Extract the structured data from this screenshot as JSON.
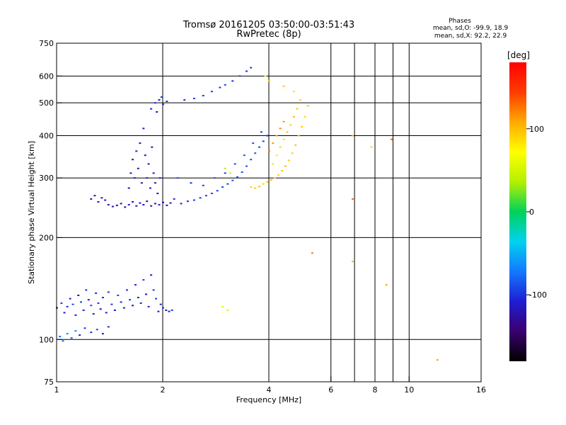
{
  "header": {
    "title": "Tromsø 20161205 03:50:00-03:51:43",
    "subtitle": "RwPretec (8p)",
    "stats_title": "Phases",
    "stats_o": "mean, sd,O:  -99.9,  18.9",
    "stats_x": "mean, sd,X:   92.2,  22.9"
  },
  "colorbar": {
    "unit_label": "[deg]",
    "ticks": [
      {
        "value": 100,
        "label": "100"
      },
      {
        "value": 0,
        "label": "0"
      },
      {
        "value": -100,
        "label": "-100"
      }
    ],
    "range": [
      -180,
      180
    ],
    "stops": [
      "#000000",
      "#3a006e",
      "#1e1ed2",
      "#1478ff",
      "#00d2f0",
      "#00d25a",
      "#b4f000",
      "#ffff00",
      "#ffaa00",
      "#ff3c00",
      "#ff0000"
    ]
  },
  "chart_data": {
    "type": "scatter",
    "title": "Tromsø 20161205 03:50:00-03:51:43",
    "subtitle": "RwPretec (8p)",
    "xlabel": "Frequency [MHz]",
    "ylabel": "Stationary phase Virtual Height [km]",
    "x_scale": "log",
    "y_scale": "log",
    "xlim": [
      1,
      16
    ],
    "ylim": [
      75,
      750
    ],
    "grid": true,
    "x_ticks": [
      {
        "v": 1,
        "l": "1"
      },
      {
        "v": 2,
        "l": "2"
      },
      {
        "v": 4,
        "l": "4"
      },
      {
        "v": 6,
        "l": "6"
      },
      {
        "v": 8,
        "l": "8"
      },
      {
        "v": 10,
        "l": "10"
      },
      {
        "v": 16,
        "l": "16"
      }
    ],
    "x_grid": [
      2,
      4,
      6,
      7,
      8,
      9,
      10
    ],
    "y_ticks": [
      {
        "v": 75,
        "l": "75"
      },
      {
        "v": 100,
        "l": "100"
      },
      {
        "v": 200,
        "l": "200"
      },
      {
        "v": 300,
        "l": "300"
      },
      {
        "v": 400,
        "l": "400"
      },
      {
        "v": 500,
        "l": "500"
      },
      {
        "v": 600,
        "l": "600"
      },
      {
        "v": 750,
        "l": "750"
      }
    ],
    "y_grid": [
      100,
      200,
      300,
      400,
      500,
      600
    ],
    "series": [
      {
        "mode": "O",
        "phase_mean": -99.9,
        "points": [
          [
            1.0,
            124,
            -110
          ],
          [
            1.03,
            128,
            -95
          ],
          [
            1.05,
            120,
            -115
          ],
          [
            1.07,
            125,
            -100
          ],
          [
            1.09,
            132,
            -105
          ],
          [
            1.11,
            127,
            -90
          ],
          [
            1.13,
            118,
            -110
          ],
          [
            1.15,
            135,
            -120
          ],
          [
            1.17,
            129,
            -95
          ],
          [
            1.19,
            122,
            -105
          ],
          [
            1.21,
            140,
            -100
          ],
          [
            1.23,
            131,
            -115
          ],
          [
            1.25,
            126,
            -90
          ],
          [
            1.27,
            119,
            -110
          ],
          [
            1.29,
            137,
            -100
          ],
          [
            1.31,
            128,
            -95
          ],
          [
            1.33,
            123,
            -120
          ],
          [
            1.35,
            133,
            -105
          ],
          [
            1.38,
            120,
            -110
          ],
          [
            1.4,
            138,
            -100
          ],
          [
            1.43,
            127,
            -95
          ],
          [
            1.46,
            122,
            -115
          ],
          [
            1.49,
            135,
            -90
          ],
          [
            1.52,
            129,
            -105
          ],
          [
            1.55,
            124,
            -110
          ],
          [
            1.58,
            140,
            -100
          ],
          [
            1.61,
            131,
            -95
          ],
          [
            1.64,
            126,
            -120
          ],
          [
            1.67,
            145,
            -105
          ],
          [
            1.7,
            133,
            -110
          ],
          [
            1.73,
            128,
            -100
          ],
          [
            1.76,
            150,
            -95
          ],
          [
            1.79,
            136,
            -115
          ],
          [
            1.82,
            125,
            -105
          ],
          [
            1.85,
            155,
            -110
          ],
          [
            1.88,
            140,
            -100
          ],
          [
            1.91,
            132,
            -95
          ],
          [
            1.94,
            121,
            -110
          ],
          [
            1.97,
            127,
            -105
          ],
          [
            2.0,
            124,
            -100
          ],
          [
            2.04,
            122,
            -115
          ],
          [
            2.08,
            121,
            -110
          ],
          [
            2.12,
            122,
            -95
          ],
          [
            1.02,
            102,
            -80
          ],
          [
            1.04,
            99,
            -75
          ],
          [
            1.07,
            104,
            -60
          ],
          [
            1.1,
            101,
            -85
          ],
          [
            1.13,
            106,
            -70
          ],
          [
            1.16,
            103,
            -110
          ],
          [
            1.2,
            108,
            -95
          ],
          [
            1.25,
            105,
            -100
          ],
          [
            1.3,
            107,
            -90
          ],
          [
            1.35,
            104,
            -105
          ],
          [
            1.4,
            109,
            -100
          ],
          [
            1.25,
            260,
            -120
          ],
          [
            1.28,
            266,
            -125
          ],
          [
            1.31,
            255,
            -115
          ],
          [
            1.34,
            262,
            -120
          ],
          [
            1.37,
            258,
            -110
          ],
          [
            1.4,
            250,
            -125
          ],
          [
            1.44,
            247,
            -120
          ],
          [
            1.48,
            249,
            -115
          ],
          [
            1.52,
            252,
            -125
          ],
          [
            1.56,
            246,
            -120
          ],
          [
            1.6,
            250,
            -110
          ],
          [
            1.64,
            255,
            -125
          ],
          [
            1.68,
            248,
            -120
          ],
          [
            1.72,
            253,
            -115
          ],
          [
            1.76,
            250,
            -120
          ],
          [
            1.8,
            256,
            -125
          ],
          [
            1.85,
            248,
            -115
          ],
          [
            1.9,
            252,
            -120
          ],
          [
            1.95,
            250,
            -110
          ],
          [
            2.0,
            254,
            -120
          ],
          [
            2.05,
            249,
            -125
          ],
          [
            2.1,
            253,
            -115
          ],
          [
            1.6,
            280,
            -120
          ],
          [
            1.62,
            310,
            -115
          ],
          [
            1.64,
            340,
            -125
          ],
          [
            1.66,
            300,
            -120
          ],
          [
            1.68,
            360,
            -110
          ],
          [
            1.7,
            320,
            -120
          ],
          [
            1.72,
            380,
            -115
          ],
          [
            1.74,
            290,
            -125
          ],
          [
            1.76,
            420,
            -110
          ],
          [
            1.78,
            350,
            -120
          ],
          [
            1.8,
            300,
            -115
          ],
          [
            1.82,
            330,
            -120
          ],
          [
            1.84,
            280,
            -110
          ],
          [
            1.86,
            370,
            -120
          ],
          [
            1.88,
            310,
            -125
          ],
          [
            1.9,
            290,
            -115
          ],
          [
            1.93,
            270,
            -120
          ],
          [
            1.96,
            300,
            -110
          ],
          [
            1.85,
            480,
            -105
          ],
          [
            1.9,
            500,
            -100
          ],
          [
            1.95,
            510,
            -110
          ],
          [
            2.0,
            495,
            -105
          ],
          [
            2.05,
            505,
            -100
          ],
          [
            1.92,
            470,
            -115
          ],
          [
            1.98,
            520,
            -95
          ],
          [
            2.15,
            260,
            -100
          ],
          [
            2.25,
            252,
            -105
          ],
          [
            2.35,
            256,
            -100
          ],
          [
            2.45,
            258,
            -95
          ],
          [
            2.55,
            262,
            -100
          ],
          [
            2.65,
            266,
            -95
          ],
          [
            2.75,
            270,
            -90
          ],
          [
            2.85,
            275,
            -95
          ],
          [
            2.95,
            282,
            -90
          ],
          [
            3.05,
            288,
            -95
          ],
          [
            3.15,
            295,
            -90
          ],
          [
            3.25,
            302,
            -85
          ],
          [
            3.35,
            312,
            -90
          ],
          [
            3.45,
            325,
            -85
          ],
          [
            3.55,
            340,
            -90
          ],
          [
            3.65,
            355,
            -85
          ],
          [
            3.75,
            370,
            -90
          ],
          [
            3.85,
            385,
            -95
          ],
          [
            3.95,
            400,
            -100
          ],
          [
            2.2,
            300,
            -95
          ],
          [
            2.4,
            290,
            -100
          ],
          [
            2.6,
            285,
            -95
          ],
          [
            2.8,
            300,
            -90
          ],
          [
            3.0,
            310,
            -95
          ],
          [
            3.2,
            330,
            -90
          ],
          [
            3.4,
            350,
            -85
          ],
          [
            3.6,
            380,
            -90
          ],
          [
            3.8,
            410,
            -95
          ],
          [
            2.3,
            510,
            -100
          ],
          [
            2.45,
            515,
            -95
          ],
          [
            2.6,
            525,
            -100
          ],
          [
            2.75,
            540,
            -95
          ],
          [
            2.9,
            555,
            -100
          ],
          [
            3.0,
            565,
            -95
          ],
          [
            3.15,
            580,
            -100
          ],
          [
            3.3,
            600,
            -95
          ],
          [
            3.45,
            620,
            -100
          ],
          [
            3.55,
            635,
            -95
          ]
        ]
      },
      {
        "mode": "X",
        "phase_mean": 92.2,
        "points": [
          [
            3.55,
            282,
            90
          ],
          [
            3.65,
            280,
            95
          ],
          [
            3.75,
            283,
            100
          ],
          [
            3.85,
            288,
            90
          ],
          [
            3.95,
            292,
            95
          ],
          [
            4.05,
            296,
            100
          ],
          [
            4.15,
            300,
            95
          ],
          [
            4.25,
            306,
            90
          ],
          [
            4.35,
            315,
            95
          ],
          [
            4.45,
            325,
            100
          ],
          [
            4.55,
            338,
            95
          ],
          [
            4.65,
            355,
            90
          ],
          [
            4.75,
            375,
            95
          ],
          [
            4.85,
            400,
            100
          ],
          [
            4.95,
            425,
            95
          ],
          [
            5.05,
            455,
            90
          ],
          [
            5.15,
            490,
            95
          ],
          [
            4.1,
            330,
            85
          ],
          [
            4.2,
            350,
            80
          ],
          [
            4.3,
            370,
            90
          ],
          [
            4.4,
            390,
            85
          ],
          [
            4.5,
            410,
            95
          ],
          [
            4.6,
            430,
            90
          ],
          [
            4.7,
            455,
            100
          ],
          [
            4.8,
            480,
            95
          ],
          [
            4.9,
            510,
            90
          ],
          [
            4.0,
            360,
            120
          ],
          [
            4.1,
            380,
            115
          ],
          [
            4.2,
            400,
            110
          ],
          [
            4.3,
            420,
            120
          ],
          [
            4.4,
            440,
            115
          ],
          [
            3.0,
            320,
            40
          ],
          [
            3.1,
            310,
            50
          ],
          [
            2.95,
            125,
            60
          ],
          [
            3.05,
            122,
            55
          ],
          [
            3.9,
            600,
            80
          ],
          [
            4.0,
            580,
            90
          ],
          [
            4.4,
            560,
            95
          ],
          [
            4.7,
            540,
            85
          ],
          [
            5.3,
            180,
            120
          ],
          [
            6.9,
            260,
            130
          ],
          [
            6.9,
            400,
            110
          ],
          [
            7.8,
            370,
            90
          ],
          [
            8.9,
            390,
            130
          ],
          [
            12.0,
            87,
            110
          ],
          [
            8.6,
            145,
            110
          ],
          [
            6.9,
            170,
            100
          ]
        ]
      }
    ]
  }
}
